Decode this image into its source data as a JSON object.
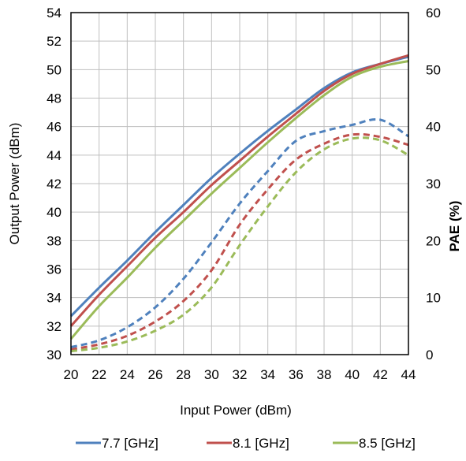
{
  "chart_data": {
    "type": "line",
    "xlabel": "Input Power (dBm)",
    "ylabel": "Output Power (dBm)",
    "y2label": "PAE (%)",
    "xlim": [
      20,
      44
    ],
    "ylim": [
      30,
      54
    ],
    "y2lim": [
      0,
      60
    ],
    "xticks": [
      "20",
      "22",
      "24",
      "26",
      "28",
      "30",
      "32",
      "34",
      "36",
      "38",
      "40",
      "42",
      "44"
    ],
    "yticks": [
      "30",
      "32",
      "34",
      "36",
      "38",
      "40",
      "42",
      "44",
      "46",
      "48",
      "50",
      "52",
      "54"
    ],
    "y2ticks": [
      "0",
      "10",
      "20",
      "30",
      "40",
      "50",
      "60"
    ],
    "grid": true,
    "legend_position": "bottom",
    "series": [
      {
        "name": "7.7 [GHz]",
        "color": "#4f81bd",
        "x": [
          20,
          22,
          24,
          26,
          28,
          30,
          32,
          34,
          36,
          38,
          40,
          42,
          44
        ],
        "output_power": [
          32.7,
          34.7,
          36.6,
          38.6,
          40.5,
          42.4,
          44.1,
          45.7,
          47.2,
          48.7,
          49.8,
          50.4,
          50.9
        ],
        "pae": [
          1.3,
          2.5,
          4.8,
          8.3,
          13.3,
          19.7,
          26.5,
          32.2,
          37.5,
          39.2,
          40.3,
          41.2,
          38.3
        ]
      },
      {
        "name": "8.1 [GHz]",
        "color": "#c0504d",
        "x": [
          20,
          22,
          24,
          26,
          28,
          30,
          32,
          34,
          36,
          38,
          40,
          42,
          44
        ],
        "output_power": [
          32.0,
          34.2,
          36.2,
          38.2,
          40.0,
          41.9,
          43.6,
          45.3,
          46.9,
          48.5,
          49.7,
          50.4,
          51.0
        ],
        "pae": [
          0.9,
          1.8,
          3.3,
          5.8,
          9.4,
          14.8,
          22.8,
          29.0,
          34.2,
          37.0,
          38.6,
          38.2,
          36.8
        ]
      },
      {
        "name": "8.5 [GHz]",
        "color": "#9bbb59",
        "x": [
          20,
          22,
          24,
          26,
          28,
          30,
          32,
          34,
          36,
          38,
          40,
          42,
          44
        ],
        "output_power": [
          31.1,
          33.4,
          35.4,
          37.5,
          39.4,
          41.3,
          43.1,
          44.9,
          46.6,
          48.2,
          49.5,
          50.2,
          50.6
        ],
        "pae": [
          0.6,
          1.2,
          2.3,
          4.2,
          7.0,
          11.8,
          19.2,
          26.0,
          32.0,
          36.0,
          37.9,
          37.6,
          35.0
        ]
      }
    ]
  }
}
